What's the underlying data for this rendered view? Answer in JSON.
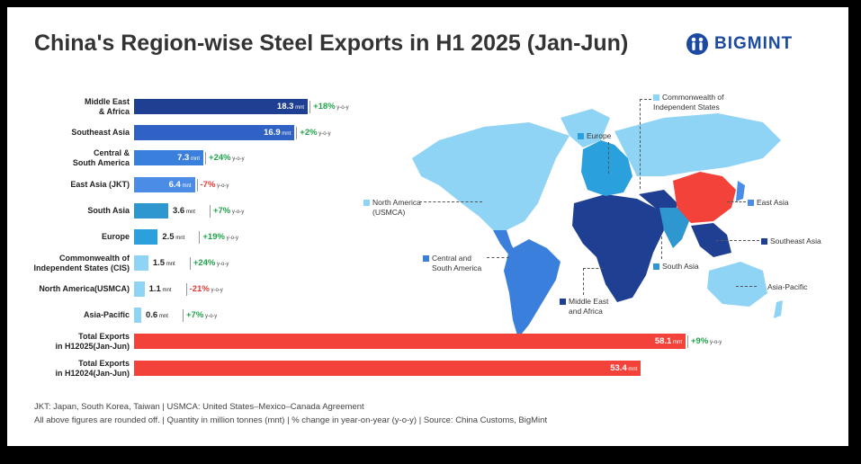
{
  "title": "China's Region-wise Steel Exports in H1 2025 (Jan-Jun)",
  "brand": "BIGMINT",
  "colors": {
    "red": "#f2423a",
    "pos": "#1fa34a",
    "neg": "#e53935"
  },
  "chart_data": {
    "type": "bar",
    "orientation": "horizontal",
    "unit": "mnt",
    "categories": [
      "Middle East & Africa",
      "Southeast Asia",
      "Central & South America",
      "East Asia (JKT)",
      "South Asia",
      "Europe",
      "Commonwealth of Independent States (CIS)",
      "North America(USMCA)",
      "Asia-Pacific",
      "Total Exports in H12025(Jan-Jun)",
      "Total Exports in H12024(Jan-Jun)"
    ],
    "category_lines": [
      [
        "Middle East",
        "& Africa"
      ],
      [
        "Southeast Asia"
      ],
      [
        "Central &",
        "South America"
      ],
      [
        "East Asia (JKT)"
      ],
      [
        "South Asia"
      ],
      [
        "Europe"
      ],
      [
        "Commonwealth of",
        "Independent States (CIS)"
      ],
      [
        "North America(USMCA)"
      ],
      [
        "Asia-Pacific"
      ],
      [
        "Total Exports",
        "in H12025(Jan-Jun)"
      ],
      [
        "Total Exports",
        "in H12024(Jan-Jun)"
      ]
    ],
    "values": [
      18.3,
      16.9,
      7.3,
      6.4,
      3.6,
      2.5,
      1.5,
      1.1,
      0.6,
      58.1,
      53.4
    ],
    "value_labels": [
      "18.3",
      "16.9",
      "7.3",
      "6.4",
      "3.6",
      "2.5",
      "1.5",
      "1.1",
      "0.6",
      "58.1",
      "53.4"
    ],
    "unit_label": "mnt",
    "yoy_suffix": "y-o-y",
    "yoy_change": [
      "+18%",
      "+2%",
      "+24%",
      "-7%",
      "+7%",
      "+19%",
      "+24%",
      "-21%",
      "+7%",
      "+9%",
      ""
    ],
    "bar_colors": [
      "#1f3f93",
      "#2f62c4",
      "#3b7fdc",
      "#4a8ce6",
      "#2f97cf",
      "#2aa0dc",
      "#8fd3f5",
      "#8fd3f5",
      "#8fd3f5",
      "#f2423a",
      "#f2423a"
    ]
  },
  "map": {
    "labels": {
      "cis": [
        "Commonwealth of",
        "Independent States"
      ],
      "europe": [
        "Europe"
      ],
      "east_asia": [
        "East Asia"
      ],
      "southeast_asia": [
        "Southeast Asia"
      ],
      "south_asia": [
        "South Asia"
      ],
      "asia_pacific": [
        "Asia-Pacific"
      ],
      "north_america": [
        "North America",
        "(USMCA)"
      ],
      "central_south_america": [
        "Central and",
        "South America"
      ],
      "middle_east_africa": [
        "Middle East",
        "and Africa"
      ]
    },
    "colors": {
      "light": "#8fd3f5",
      "north_america": "#8fd3f5",
      "south_america": "#3b7fdc",
      "africa": "#1f3f93",
      "china": "#f2423a",
      "europe": "#2aa0dc",
      "south_asia": "#2f97cf",
      "southeast_asia": "#1f3f93",
      "east_asia": "#4a8ce6",
      "cis": "#8fd3f5"
    }
  },
  "footnotes": [
    "JKT: Japan, South Korea, Taiwan | USMCA: United States–Mexico–Canada Agreement",
    "All above figures are rounded off. | Quantity in million tonnes (mnt) | % change in year-on-year (y-o-y) | Source: China Customs, BigMint"
  ]
}
